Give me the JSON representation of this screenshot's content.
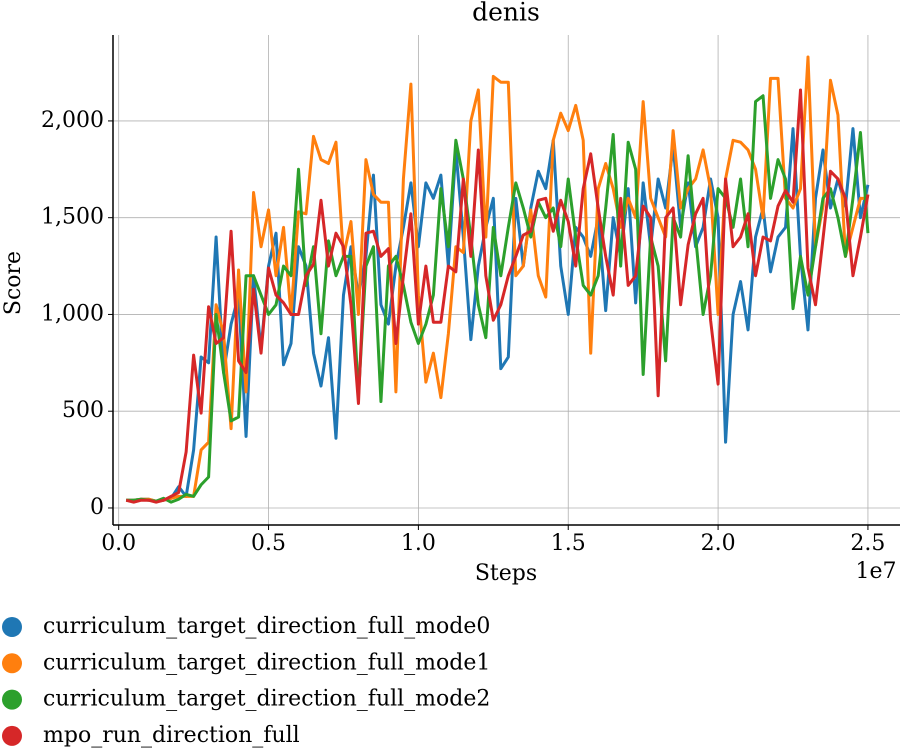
{
  "chart_data": {
    "type": "line",
    "title": "denis",
    "x_label": "Steps",
    "y_label": "Score",
    "x_offset_label": "1e7",
    "x": [
      250000,
      500000,
      750000,
      1000000,
      1250000,
      1500000,
      1750000,
      2000000,
      2250000,
      2500000,
      2750000,
      3000000,
      3250000,
      3500000,
      3750000,
      4000000,
      4250000,
      4500000,
      4750000,
      5000000,
      5250000,
      5500000,
      5750000,
      6000000,
      6250000,
      6500000,
      6750000,
      7000000,
      7250000,
      7500000,
      7750000,
      8000000,
      8250000,
      8500000,
      8750000,
      9000000,
      9250000,
      9500000,
      9750000,
      10000000,
      10250000,
      10500000,
      10750000,
      11000000,
      11250000,
      11500000,
      11750000,
      12000000,
      12250000,
      12500000,
      12750000,
      13000000,
      13250000,
      13500000,
      13750000,
      14000000,
      14250000,
      14500000,
      14750000,
      15000000,
      15250000,
      15500000,
      15750000,
      16000000,
      16250000,
      16500000,
      16750000,
      17000000,
      17250000,
      17500000,
      17750000,
      18000000,
      18250000,
      18500000,
      18750000,
      19000000,
      19250000,
      19500000,
      19750000,
      20000000,
      20250000,
      20500000,
      20750000,
      21000000,
      21250000,
      21500000,
      21750000,
      22000000,
      22250000,
      22500000,
      22750000,
      23000000,
      23250000,
      23500000,
      23750000,
      24000000,
      24250000,
      24500000,
      24750000,
      25000000
    ],
    "series": [
      {
        "name": "curriculum_target_direction_full_mode0",
        "color": "#1f77b4",
        "values": [
          40,
          40,
          45,
          45,
          35,
          40,
          50,
          110,
          60,
          300,
          780,
          750,
          1400,
          700,
          950,
          1100,
          370,
          1200,
          820,
          1250,
          1420,
          740,
          850,
          1350,
          1250,
          800,
          630,
          880,
          360,
          1100,
          1350,
          1100,
          1300,
          1720,
          1050,
          950,
          1250,
          1450,
          1680,
          1350,
          1680,
          1600,
          1720,
          1250,
          1850,
          1400,
          870,
          1250,
          1450,
          1600,
          720,
          780,
          1600,
          1250,
          1550,
          1740,
          1650,
          1900,
          1250,
          1000,
          1450,
          1400,
          1300,
          1500,
          1020,
          1500,
          1300,
          1650,
          1060,
          1680,
          1350,
          1700,
          1550,
          1870,
          1450,
          1680,
          1350,
          1450,
          1700,
          1500,
          340,
          1000,
          1170,
          920,
          1400,
          1550,
          1220,
          1400,
          1450,
          1960,
          1300,
          920,
          1600,
          1850,
          1550,
          1700,
          1560,
          1960,
          1500,
          1670
        ]
      },
      {
        "name": "curriculum_target_direction_full_mode1",
        "color": "#ff7f0e",
        "values": [
          40,
          40,
          45,
          45,
          35,
          40,
          50,
          60,
          60,
          60,
          300,
          340,
          1050,
          900,
          410,
          1230,
          600,
          1630,
          1350,
          1540,
          1200,
          1450,
          1000,
          1530,
          1520,
          1920,
          1800,
          1780,
          1890,
          1300,
          1480,
          1000,
          1800,
          1620,
          1580,
          1580,
          600,
          1700,
          2190,
          1100,
          650,
          800,
          570,
          900,
          1350,
          1320,
          2000,
          2160,
          1400,
          2230,
          2200,
          2200,
          1200,
          1250,
          1540,
          1200,
          1090,
          1900,
          2040,
          1950,
          2080,
          1900,
          800,
          1650,
          1780,
          1650,
          1450,
          1600,
          1500,
          2100,
          1600,
          1500,
          1400,
          1950,
          1550,
          1650,
          1700,
          1850,
          1650,
          1000,
          1700,
          1900,
          1890,
          1850,
          1750,
          1500,
          2220,
          2220,
          1600,
          1550,
          1650,
          2330,
          1350,
          1560,
          2210,
          2030,
          1300,
          1450,
          1600,
          1600
        ]
      },
      {
        "name": "curriculum_target_direction_full_mode2",
        "color": "#2ca02c",
        "values": [
          40,
          40,
          45,
          40,
          35,
          50,
          30,
          45,
          70,
          60,
          120,
          160,
          1000,
          700,
          450,
          470,
          1200,
          1200,
          1100,
          1000,
          1050,
          1250,
          1200,
          1750,
          1150,
          1350,
          900,
          1380,
          1200,
          1300,
          1300,
          580,
          1250,
          1350,
          550,
          1250,
          1300,
          1150,
          960,
          850,
          950,
          1100,
          1650,
          1350,
          1900,
          1700,
          1400,
          1050,
          880,
          1450,
          1200,
          1450,
          1680,
          1550,
          1400,
          1580,
          1500,
          1550,
          1350,
          1700,
          1400,
          1150,
          1100,
          1200,
          1550,
          1930,
          1250,
          1890,
          1750,
          690,
          1400,
          1250,
          760,
          1500,
          1400,
          1820,
          1400,
          1000,
          1200,
          1650,
          1600,
          1450,
          1700,
          1350,
          2100,
          2130,
          1600,
          1800,
          1700,
          1030,
          1300,
          1100,
          1350,
          1600,
          1650,
          1500,
          1300,
          1600,
          1940,
          1420
        ]
      },
      {
        "name": "mpo_run_direction_full",
        "color": "#d62728",
        "values": [
          40,
          30,
          40,
          40,
          30,
          40,
          60,
          80,
          290,
          790,
          490,
          1040,
          850,
          880,
          1430,
          760,
          700,
          1130,
          800,
          1240,
          1100,
          1060,
          1000,
          1000,
          1200,
          1260,
          1590,
          1250,
          1420,
          1350,
          1050,
          540,
          1420,
          1430,
          1300,
          1340,
          850,
          1200,
          1520,
          950,
          1250,
          960,
          960,
          1250,
          1220,
          1700,
          1300,
          1850,
          1200,
          970,
          1050,
          1200,
          1300,
          1410,
          1430,
          1590,
          1600,
          1430,
          1590,
          1480,
          1250,
          1650,
          1830,
          1550,
          1300,
          1100,
          1600,
          1150,
          1200,
          1560,
          1500,
          580,
          1500,
          1550,
          1050,
          1360,
          1520,
          1600,
          970,
          640,
          1700,
          1350,
          1400,
          1520,
          1200,
          1400,
          1380,
          1560,
          1640,
          1580,
          2160,
          1240,
          1050,
          1390,
          1740,
          1700,
          1600,
          1200,
          1400,
          1620
        ]
      }
    ],
    "xlim": [
      -190000,
      26070000
    ],
    "ylim": [
      -88,
      2444
    ],
    "xticks": [
      {
        "value": 0,
        "label": "0.0"
      },
      {
        "value": 5000000,
        "label": "0.5"
      },
      {
        "value": 10000000,
        "label": "1.0"
      },
      {
        "value": 15000000,
        "label": "1.5"
      },
      {
        "value": 20000000,
        "label": "2.0"
      },
      {
        "value": 25000000,
        "label": "2.5"
      }
    ],
    "yticks": [
      0,
      500,
      {
        "value": 1000,
        "label": "1,000"
      },
      {
        "value": 1500,
        "label": "1,500"
      },
      {
        "value": 2000,
        "label": "2,000"
      }
    ],
    "grid": true
  }
}
